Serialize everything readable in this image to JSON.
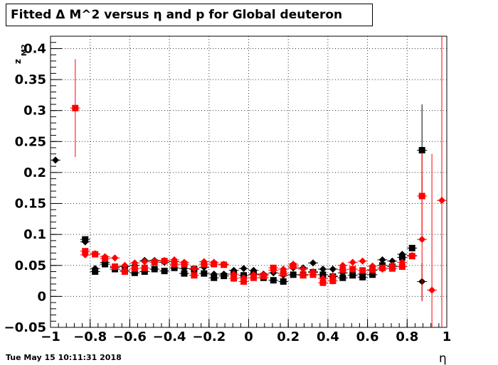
{
  "title": "Fitted Δ M^2 versus η and p for Global deuteron",
  "timestamp": "Tue May 15 10:11:31 2018",
  "colors": {
    "black_series": "#000000",
    "red_series": "#ff0000",
    "grid": "#000000"
  },
  "chart_data": {
    "type": "scatter",
    "title": "Fitted Δ M^2 versus η and p for Global deuteron",
    "xlabel": "η",
    "ylabel": "z_{M2}",
    "xlim": [
      -1,
      1
    ],
    "ylim": [
      -0.05,
      0.42
    ],
    "grid": true,
    "x_ticks": [
      -1,
      -0.8,
      -0.6,
      -0.4,
      -0.2,
      0,
      0.2,
      0.4,
      0.6,
      0.8,
      1
    ],
    "x_tick_labels": [
      "−1",
      "−0.8",
      "−0.6",
      "−0.4",
      "−0.2",
      "0",
      "0.2",
      "0.4",
      "0.6",
      "0.8",
      "1"
    ],
    "y_ticks": [
      -0.05,
      0,
      0.05,
      0.1,
      0.15,
      0.2,
      0.25,
      0.3,
      0.35,
      0.4
    ],
    "y_tick_labels": [
      "−0.05",
      "0",
      "0.05",
      "0.1",
      "0.15",
      "0.2",
      "0.25",
      "0.3",
      "0.35",
      "0.4"
    ],
    "series": [
      {
        "marker": "square",
        "color": "#000000",
        "points": [
          {
            "x": -0.825,
            "y": 0.092
          },
          {
            "x": -0.775,
            "y": 0.04
          },
          {
            "x": -0.725,
            "y": 0.052
          },
          {
            "x": -0.675,
            "y": 0.044
          },
          {
            "x": -0.625,
            "y": 0.042
          },
          {
            "x": -0.575,
            "y": 0.038
          },
          {
            "x": -0.525,
            "y": 0.04
          },
          {
            "x": -0.475,
            "y": 0.044
          },
          {
            "x": -0.425,
            "y": 0.041
          },
          {
            "x": -0.375,
            "y": 0.046
          },
          {
            "x": -0.325,
            "y": 0.037
          },
          {
            "x": -0.275,
            "y": 0.044
          },
          {
            "x": -0.225,
            "y": 0.037
          },
          {
            "x": -0.175,
            "y": 0.03
          },
          {
            "x": -0.125,
            "y": 0.033
          },
          {
            "x": -0.075,
            "y": 0.036
          },
          {
            "x": -0.025,
            "y": 0.034
          },
          {
            "x": 0.025,
            "y": 0.036
          },
          {
            "x": 0.075,
            "y": 0.03
          },
          {
            "x": 0.125,
            "y": 0.026
          },
          {
            "x": 0.175,
            "y": 0.024
          },
          {
            "x": 0.225,
            "y": 0.035
          },
          {
            "x": 0.275,
            "y": 0.035
          },
          {
            "x": 0.325,
            "y": 0.039
          },
          {
            "x": 0.375,
            "y": 0.035
          },
          {
            "x": 0.425,
            "y": 0.032
          },
          {
            "x": 0.475,
            "y": 0.03
          },
          {
            "x": 0.525,
            "y": 0.034
          },
          {
            "x": 0.575,
            "y": 0.031
          },
          {
            "x": 0.625,
            "y": 0.035
          },
          {
            "x": 0.675,
            "y": 0.05
          },
          {
            "x": 0.725,
            "y": 0.048
          },
          {
            "x": 0.775,
            "y": 0.063
          },
          {
            "x": 0.825,
            "y": 0.078
          },
          {
            "x": 0.875,
            "y": 0.236,
            "err": 0.074
          }
        ]
      },
      {
        "marker": "diamond",
        "color": "#000000",
        "points": [
          {
            "x": -0.975,
            "y": 0.22
          },
          {
            "x": -0.825,
            "y": 0.088
          },
          {
            "x": -0.775,
            "y": 0.045
          },
          {
            "x": -0.725,
            "y": 0.055
          },
          {
            "x": -0.675,
            "y": 0.047
          },
          {
            "x": -0.625,
            "y": 0.048
          },
          {
            "x": -0.575,
            "y": 0.05
          },
          {
            "x": -0.525,
            "y": 0.058
          },
          {
            "x": -0.475,
            "y": 0.058
          },
          {
            "x": -0.425,
            "y": 0.055
          },
          {
            "x": -0.375,
            "y": 0.056
          },
          {
            "x": -0.325,
            "y": 0.045
          },
          {
            "x": -0.275,
            "y": 0.044
          },
          {
            "x": -0.225,
            "y": 0.047
          },
          {
            "x": -0.175,
            "y": 0.036
          },
          {
            "x": -0.125,
            "y": 0.036
          },
          {
            "x": -0.075,
            "y": 0.042
          },
          {
            "x": -0.025,
            "y": 0.045
          },
          {
            "x": 0.025,
            "y": 0.042
          },
          {
            "x": 0.075,
            "y": 0.036
          },
          {
            "x": 0.125,
            "y": 0.038
          },
          {
            "x": 0.175,
            "y": 0.034
          },
          {
            "x": 0.225,
            "y": 0.046
          },
          {
            "x": 0.275,
            "y": 0.046
          },
          {
            "x": 0.325,
            "y": 0.054
          },
          {
            "x": 0.375,
            "y": 0.044
          },
          {
            "x": 0.425,
            "y": 0.044
          },
          {
            "x": 0.475,
            "y": 0.038
          },
          {
            "x": 0.525,
            "y": 0.044
          },
          {
            "x": 0.575,
            "y": 0.036
          },
          {
            "x": 0.625,
            "y": 0.042
          },
          {
            "x": 0.675,
            "y": 0.059
          },
          {
            "x": 0.725,
            "y": 0.057
          },
          {
            "x": 0.775,
            "y": 0.068
          },
          {
            "x": 0.875,
            "y": 0.024,
            "err": 0.03
          }
        ]
      },
      {
        "marker": "square",
        "color": "#ff0000",
        "points": [
          {
            "x": -0.875,
            "y": 0.304,
            "err": 0.079
          },
          {
            "x": -0.825,
            "y": 0.073
          },
          {
            "x": -0.775,
            "y": 0.068
          },
          {
            "x": -0.725,
            "y": 0.061
          },
          {
            "x": -0.675,
            "y": 0.048
          },
          {
            "x": -0.625,
            "y": 0.04
          },
          {
            "x": -0.575,
            "y": 0.045
          },
          {
            "x": -0.525,
            "y": 0.046
          },
          {
            "x": -0.475,
            "y": 0.055
          },
          {
            "x": -0.425,
            "y": 0.057
          },
          {
            "x": -0.375,
            "y": 0.052
          },
          {
            "x": -0.325,
            "y": 0.052
          },
          {
            "x": -0.275,
            "y": 0.034
          },
          {
            "x": -0.225,
            "y": 0.052
          },
          {
            "x": -0.175,
            "y": 0.052
          },
          {
            "x": -0.125,
            "y": 0.051
          },
          {
            "x": -0.075,
            "y": 0.029
          },
          {
            "x": -0.025,
            "y": 0.024
          },
          {
            "x": 0.025,
            "y": 0.03
          },
          {
            "x": 0.075,
            "y": 0.033
          },
          {
            "x": 0.125,
            "y": 0.046
          },
          {
            "x": 0.175,
            "y": 0.037
          },
          {
            "x": 0.225,
            "y": 0.049
          },
          {
            "x": 0.275,
            "y": 0.034
          },
          {
            "x": 0.325,
            "y": 0.035
          },
          {
            "x": 0.375,
            "y": 0.022
          },
          {
            "x": 0.425,
            "y": 0.025
          },
          {
            "x": 0.475,
            "y": 0.043
          },
          {
            "x": 0.525,
            "y": 0.044
          },
          {
            "x": 0.575,
            "y": 0.042
          },
          {
            "x": 0.625,
            "y": 0.043
          },
          {
            "x": 0.675,
            "y": 0.046
          },
          {
            "x": 0.725,
            "y": 0.045
          },
          {
            "x": 0.775,
            "y": 0.048
          },
          {
            "x": 0.825,
            "y": 0.065
          },
          {
            "x": 0.875,
            "y": 0.162,
            "err": 0.07
          }
        ]
      },
      {
        "marker": "diamond",
        "color": "#ff0000",
        "points": [
          {
            "x": -0.825,
            "y": 0.067
          },
          {
            "x": -0.775,
            "y": 0.069
          },
          {
            "x": -0.725,
            "y": 0.064
          },
          {
            "x": -0.675,
            "y": 0.062
          },
          {
            "x": -0.625,
            "y": 0.05
          },
          {
            "x": -0.575,
            "y": 0.054
          },
          {
            "x": -0.525,
            "y": 0.056
          },
          {
            "x": -0.475,
            "y": 0.057
          },
          {
            "x": -0.425,
            "y": 0.058
          },
          {
            "x": -0.375,
            "y": 0.059
          },
          {
            "x": -0.325,
            "y": 0.055
          },
          {
            "x": -0.275,
            "y": 0.045
          },
          {
            "x": -0.225,
            "y": 0.056
          },
          {
            "x": -0.175,
            "y": 0.055
          },
          {
            "x": -0.125,
            "y": 0.052
          },
          {
            "x": -0.075,
            "y": 0.036
          },
          {
            "x": -0.025,
            "y": 0.03
          },
          {
            "x": 0.025,
            "y": 0.035
          },
          {
            "x": 0.075,
            "y": 0.035
          },
          {
            "x": 0.125,
            "y": 0.042
          },
          {
            "x": 0.175,
            "y": 0.044
          },
          {
            "x": 0.225,
            "y": 0.052
          },
          {
            "x": 0.275,
            "y": 0.044
          },
          {
            "x": 0.325,
            "y": 0.04
          },
          {
            "x": 0.375,
            "y": 0.029
          },
          {
            "x": 0.425,
            "y": 0.033
          },
          {
            "x": 0.475,
            "y": 0.05
          },
          {
            "x": 0.525,
            "y": 0.055
          },
          {
            "x": 0.575,
            "y": 0.057
          },
          {
            "x": 0.625,
            "y": 0.049
          },
          {
            "x": 0.675,
            "y": 0.044
          },
          {
            "x": 0.725,
            "y": 0.05
          },
          {
            "x": 0.775,
            "y": 0.055
          },
          {
            "x": 0.825,
            "y": 0.066
          },
          {
            "x": 0.875,
            "y": 0.092,
            "err": 0.1
          },
          {
            "x": 0.925,
            "y": 0.01,
            "err": 0.22
          },
          {
            "x": 0.975,
            "y": 0.155,
            "err": 0.27
          }
        ]
      }
    ]
  }
}
